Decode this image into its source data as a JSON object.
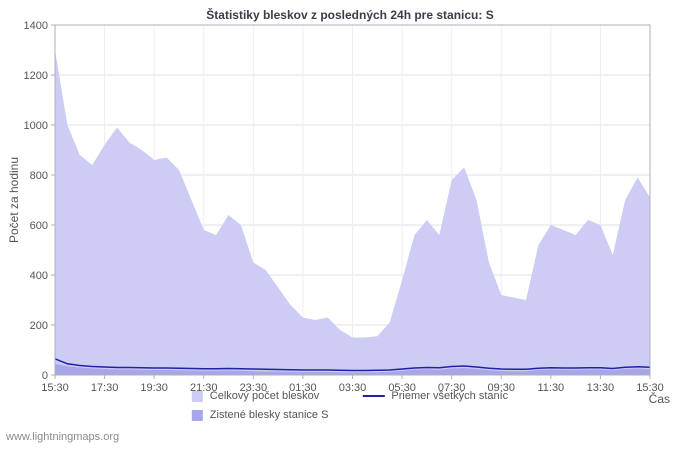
{
  "title": "Štatistiky bleskov z posledných 24h pre stanicu: S",
  "ylabel": "Počet za hodinu",
  "xlabel": "Čas",
  "watermark": "www.lightningmaps.org",
  "legend": {
    "total_label": "Celkový počet bleskov",
    "avg_label": "Priemer všetkých staníc",
    "station_label": "Zistené blesky stanice S"
  },
  "colors": {
    "area_total": "#ccccf4",
    "area_station": "#a6a6e8",
    "line_avg": "#2121a3",
    "grid": "#e2e2ea",
    "grid_vertical": "#ededf3",
    "axis": "#b0b0b8",
    "text": "#555555"
  },
  "chart_data": {
    "type": "area",
    "title": "Štatistiky bleskov z posledných 24h pre stanicu: S",
    "xlabel": "Čas",
    "ylabel": "Počet za hodinu",
    "ylim": [
      0,
      1400
    ],
    "ytick_step": 200,
    "grid": true,
    "legend_position": "bottom",
    "x_ticks": [
      "15:30",
      "17:30",
      "19:30",
      "21:30",
      "23:30",
      "01:30",
      "03:30",
      "05:30",
      "07:30",
      "09:30",
      "11:30",
      "13:30",
      "15:30"
    ],
    "x": [
      "15:30",
      "16:00",
      "16:30",
      "17:00",
      "17:30",
      "18:00",
      "18:30",
      "19:00",
      "19:30",
      "20:00",
      "20:30",
      "21:00",
      "21:30",
      "22:00",
      "22:30",
      "23:00",
      "23:30",
      "00:00",
      "00:30",
      "01:00",
      "01:30",
      "02:00",
      "02:30",
      "03:00",
      "03:30",
      "04:00",
      "04:30",
      "05:00",
      "05:30",
      "06:00",
      "06:30",
      "07:00",
      "07:30",
      "08:00",
      "08:30",
      "09:00",
      "09:30",
      "10:00",
      "10:30",
      "11:00",
      "11:30",
      "12:00",
      "12:30",
      "13:00",
      "13:30",
      "14:00",
      "14:30",
      "15:00",
      "15:30"
    ],
    "series": [
      {
        "name": "Celkový počet bleskov",
        "type": "area",
        "color": "#ccccf4",
        "values": [
          1300,
          1000,
          880,
          840,
          920,
          990,
          930,
          900,
          860,
          870,
          820,
          700,
          580,
          560,
          640,
          600,
          450,
          420,
          350,
          280,
          230,
          220,
          230,
          180,
          150,
          150,
          155,
          210,
          380,
          560,
          620,
          560,
          780,
          830,
          700,
          450,
          320,
          310,
          300,
          520,
          600,
          580,
          560,
          620,
          600,
          480,
          700,
          790,
          710
        ]
      },
      {
        "name": "Zistené blesky stanice S",
        "type": "area",
        "color": "#a6a6e8",
        "values": [
          45,
          35,
          30,
          26,
          24,
          22,
          22,
          21,
          20,
          20,
          19,
          18,
          17,
          17,
          18,
          17,
          15,
          14,
          14,
          13,
          12,
          12,
          12,
          11,
          10,
          10,
          11,
          13,
          17,
          21,
          23,
          21,
          26,
          28,
          24,
          19,
          16,
          15,
          15,
          20,
          22,
          21,
          21,
          22,
          22,
          19,
          24,
          26,
          23
        ]
      },
      {
        "name": "Priemer všetkých staníc",
        "type": "line",
        "color": "#2121a3",
        "values": [
          65,
          45,
          38,
          34,
          32,
          30,
          30,
          29,
          28,
          28,
          27,
          26,
          25,
          25,
          26,
          25,
          24,
          23,
          22,
          21,
          20,
          20,
          20,
          19,
          18,
          18,
          19,
          20,
          24,
          28,
          30,
          29,
          34,
          36,
          32,
          27,
          24,
          23,
          23,
          27,
          29,
          28,
          28,
          29,
          29,
          26,
          31,
          33,
          31
        ]
      }
    ]
  }
}
